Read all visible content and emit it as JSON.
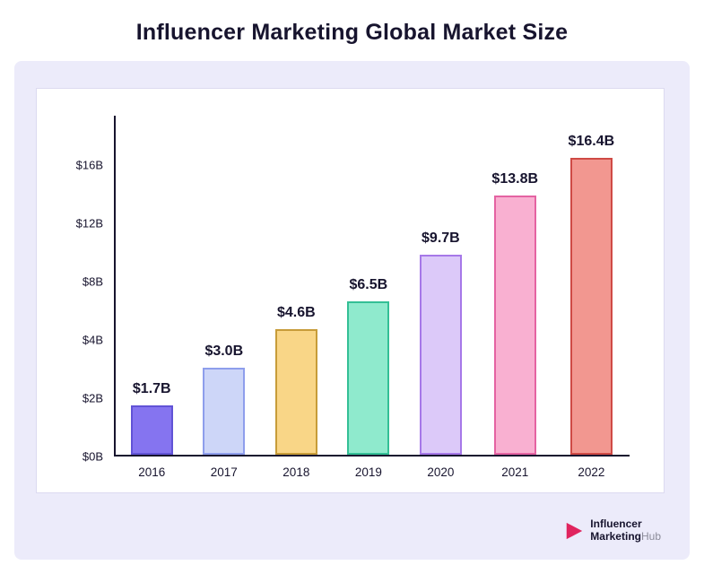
{
  "page": {
    "title": "Influencer Marketing Global Market Size"
  },
  "chart_data": {
    "type": "bar",
    "title": "Influencer Marketing Global Market Size",
    "categories": [
      "2016",
      "2017",
      "2018",
      "2019",
      "2020",
      "2021",
      "2022"
    ],
    "values": [
      1.7,
      3.0,
      4.6,
      6.5,
      9.7,
      13.8,
      16.4
    ],
    "value_labels": [
      "$1.7B",
      "$3.0B",
      "$4.6B",
      "$6.5B",
      "$9.7B",
      "$13.8B",
      "$16.4B"
    ],
    "unit": "USD billions",
    "xlabel": "",
    "ylabel": "",
    "y_tick_labels": [
      "$0B",
      "$2B",
      "$4B",
      "$8B",
      "$12B",
      "$16B"
    ],
    "y_tick_values": [
      0,
      2,
      4,
      8,
      12,
      16
    ],
    "ylim": [
      0,
      17.7
    ],
    "grid": false,
    "legend": false,
    "bar_styles": [
      {
        "fill": "#8574f0",
        "border": "#6153d6"
      },
      {
        "fill": "#cdd6f8",
        "border": "#8e9eec"
      },
      {
        "fill": "#f9d687",
        "border": "#c79c39"
      },
      {
        "fill": "#8feacd",
        "border": "#33bf95"
      },
      {
        "fill": "#dcc9f9",
        "border": "#a678e8"
      },
      {
        "fill": "#f9b0d1",
        "border": "#e463a2"
      },
      {
        "fill": "#f29790",
        "border": "#cf4a45"
      }
    ]
  },
  "branding": {
    "line1": "Influencer",
    "line2_bold": "Marketing",
    "line2_light": "Hub",
    "icon_color": "#e0245e"
  },
  "colors": {
    "panel_bg": "#ecebfa",
    "card_bg": "#ffffff",
    "axis": "#17142e",
    "text": "#17142e"
  }
}
